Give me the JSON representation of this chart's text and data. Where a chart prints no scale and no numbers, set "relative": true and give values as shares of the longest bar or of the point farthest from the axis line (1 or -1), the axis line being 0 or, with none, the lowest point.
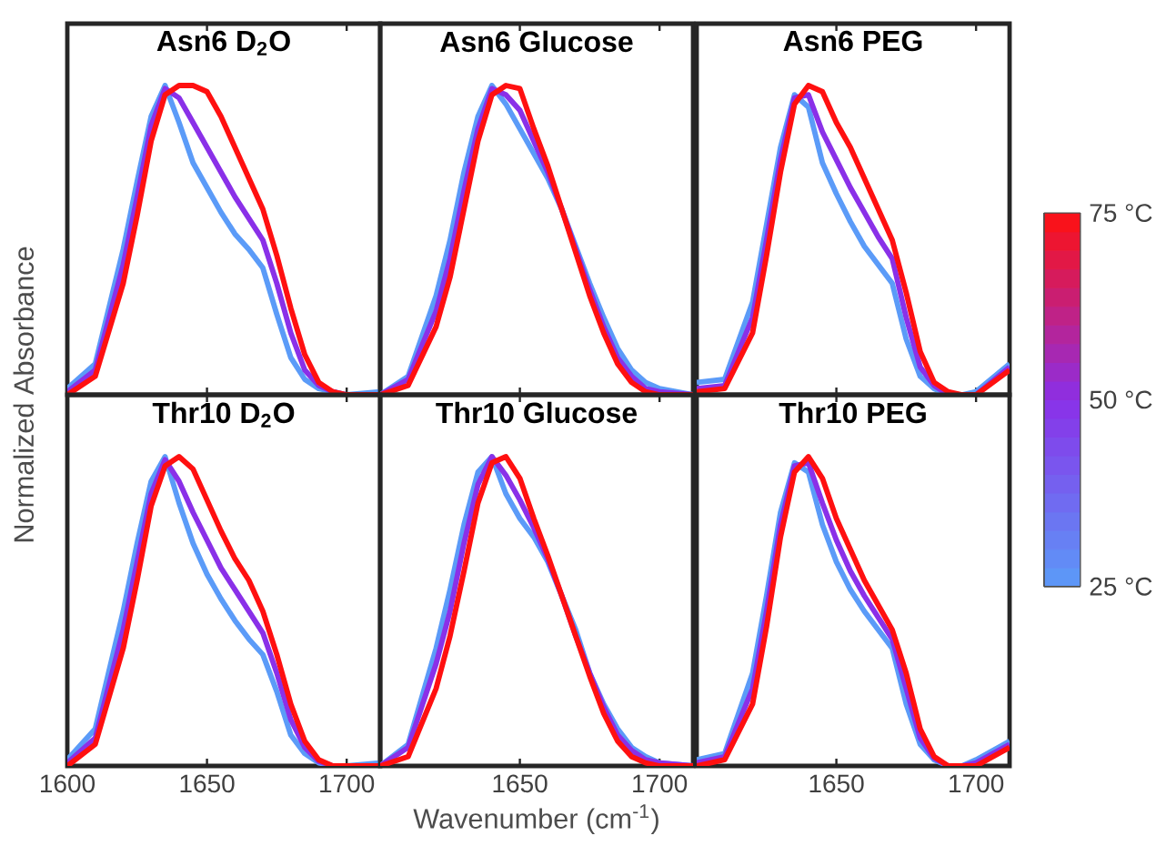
{
  "chart_data": [
    {
      "type": "line",
      "title": "Asn6 D$_{2}$O",
      "relative": true,
      "xlim": [
        1600,
        1712
      ],
      "xticks": [
        1650,
        1700
      ],
      "tick_labels": false,
      "x": [
        1600,
        1610,
        1620,
        1625,
        1630,
        1635,
        1640,
        1645,
        1650,
        1655,
        1660,
        1665,
        1670,
        1675,
        1680,
        1685,
        1690,
        1695,
        1700,
        1712
      ],
      "series": [
        {
          "color": "#5b9bf8",
          "values": [
            0.02,
            0.1,
            0.47,
            0.69,
            0.9,
            1.0,
            0.88,
            0.75,
            0.67,
            0.59,
            0.52,
            0.47,
            0.41,
            0.26,
            0.12,
            0.05,
            0.02,
            0.01,
            0,
            0.01
          ]
        },
        {
          "color": "#8a30e8",
          "values": [
            0.01,
            0.08,
            0.42,
            0.64,
            0.87,
            0.99,
            0.96,
            0.88,
            0.8,
            0.72,
            0.64,
            0.57,
            0.5,
            0.36,
            0.2,
            0.08,
            0.03,
            0.01,
            0,
            0
          ]
        },
        {
          "color": "#ff1010",
          "values": [
            0,
            0.06,
            0.36,
            0.58,
            0.82,
            0.97,
            1.0,
            1.0,
            0.98,
            0.9,
            0.8,
            0.7,
            0.6,
            0.45,
            0.28,
            0.13,
            0.04,
            0.01,
            0,
            0
          ]
        }
      ]
    },
    {
      "type": "line",
      "title": "Asn6 Glucose",
      "relative": true,
      "xlim": [
        1600,
        1712
      ],
      "xticks": [
        1650,
        1700
      ],
      "tick_labels": false,
      "x": [
        1600,
        1610,
        1620,
        1625,
        1630,
        1635,
        1640,
        1645,
        1650,
        1655,
        1660,
        1665,
        1670,
        1675,
        1680,
        1685,
        1690,
        1695,
        1700,
        1712
      ],
      "series": [
        {
          "color": "#5b9bf8",
          "values": [
            0,
            0.06,
            0.32,
            0.5,
            0.72,
            0.9,
            1.0,
            0.94,
            0.86,
            0.78,
            0.7,
            0.6,
            0.48,
            0.36,
            0.25,
            0.15,
            0.08,
            0.04,
            0.02,
            0
          ]
        },
        {
          "color": "#8a30e8",
          "values": [
            0,
            0.05,
            0.27,
            0.44,
            0.66,
            0.86,
            0.99,
            0.97,
            0.92,
            0.82,
            0.72,
            0.6,
            0.47,
            0.34,
            0.22,
            0.12,
            0.06,
            0.02,
            0.01,
            0
          ]
        },
        {
          "color": "#ff1010",
          "values": [
            0,
            0.03,
            0.22,
            0.38,
            0.6,
            0.82,
            0.97,
            1.0,
            0.99,
            0.86,
            0.74,
            0.6,
            0.46,
            0.32,
            0.2,
            0.1,
            0.04,
            0.01,
            0,
            0
          ]
        }
      ]
    },
    {
      "type": "line",
      "title": "Asn6 PEG",
      "relative": true,
      "xlim": [
        1600,
        1712
      ],
      "xticks": [
        1650,
        1700
      ],
      "tick_labels": false,
      "clim": [
        25,
        75
      ],
      "cticks": [
        {
          "value": 25,
          "label": "25 °C"
        },
        {
          "value": 50,
          "label": "50 °C"
        },
        {
          "value": 75,
          "label": "75 °C"
        }
      ],
      "x": [
        1600,
        1610,
        1620,
        1625,
        1630,
        1635,
        1640,
        1645,
        1650,
        1655,
        1660,
        1665,
        1670,
        1675,
        1680,
        1685,
        1690,
        1695,
        1700,
        1712
      ],
      "series": [
        {
          "color": "#5b9bf8",
          "values": [
            0.04,
            0.05,
            0.3,
            0.55,
            0.8,
            0.97,
            0.93,
            0.75,
            0.65,
            0.56,
            0.48,
            0.42,
            0.36,
            0.18,
            0.06,
            0.02,
            0,
            0,
            0.01,
            0.1
          ]
        },
        {
          "color": "#8a30e8",
          "values": [
            0.02,
            0.03,
            0.25,
            0.5,
            0.76,
            0.96,
            0.97,
            0.85,
            0.76,
            0.67,
            0.59,
            0.51,
            0.44,
            0.25,
            0.09,
            0.03,
            0,
            0,
            0,
            0.09
          ]
        },
        {
          "color": "#ff1010",
          "values": [
            0.01,
            0.02,
            0.2,
            0.45,
            0.72,
            0.94,
            1.0,
            0.98,
            0.88,
            0.8,
            0.7,
            0.6,
            0.5,
            0.33,
            0.14,
            0.04,
            0.01,
            0,
            0,
            0.08
          ]
        }
      ]
    },
    {
      "type": "line",
      "title": "Thr10 D$_{2}$O",
      "ylabel": "Normalized Absorbance",
      "relative": true,
      "xlim": [
        1600,
        1712
      ],
      "xticks": [
        1600,
        1650,
        1700
      ],
      "tick_labels": "x",
      "x": [
        1600,
        1610,
        1620,
        1625,
        1630,
        1635,
        1640,
        1645,
        1650,
        1655,
        1660,
        1665,
        1670,
        1675,
        1680,
        1685,
        1690,
        1695,
        1700,
        1712
      ],
      "series": [
        {
          "color": "#5b9bf8",
          "values": [
            0.02,
            0.12,
            0.5,
            0.72,
            0.92,
            1.0,
            0.85,
            0.72,
            0.62,
            0.54,
            0.47,
            0.41,
            0.36,
            0.24,
            0.1,
            0.04,
            0.01,
            0,
            0,
            0.01
          ]
        },
        {
          "color": "#8a30e8",
          "values": [
            0.01,
            0.09,
            0.44,
            0.66,
            0.88,
            0.99,
            0.92,
            0.82,
            0.73,
            0.64,
            0.57,
            0.5,
            0.43,
            0.3,
            0.15,
            0.06,
            0.015,
            0,
            0,
            0
          ]
        },
        {
          "color": "#ff1010",
          "values": [
            0,
            0.07,
            0.38,
            0.6,
            0.84,
            0.97,
            1.0,
            0.96,
            0.86,
            0.76,
            0.67,
            0.6,
            0.5,
            0.36,
            0.2,
            0.08,
            0.02,
            0,
            0,
            0
          ]
        }
      ]
    },
    {
      "type": "line",
      "title": "Thr10 Glucose",
      "xlabel": "Wavenumber (cm$^{-1}$)",
      "relative": true,
      "xlim": [
        1600,
        1712
      ],
      "xticks": [
        1650,
        1700
      ],
      "tick_labels": "x",
      "x": [
        1600,
        1610,
        1620,
        1625,
        1630,
        1635,
        1640,
        1645,
        1650,
        1655,
        1660,
        1665,
        1670,
        1675,
        1680,
        1685,
        1690,
        1695,
        1700,
        1712
      ],
      "series": [
        {
          "color": "#5b9bf8",
          "values": [
            0,
            0.07,
            0.38,
            0.57,
            0.78,
            0.95,
            1.0,
            0.88,
            0.8,
            0.74,
            0.66,
            0.55,
            0.44,
            0.3,
            0.2,
            0.12,
            0.06,
            0.03,
            0.01,
            0
          ]
        },
        {
          "color": "#8a30e8",
          "values": [
            0,
            0.06,
            0.33,
            0.5,
            0.72,
            0.91,
            1.0,
            0.94,
            0.86,
            0.77,
            0.67,
            0.55,
            0.42,
            0.3,
            0.19,
            0.1,
            0.05,
            0.02,
            0.01,
            0
          ]
        },
        {
          "color": "#ff1010",
          "values": [
            0,
            0.03,
            0.25,
            0.42,
            0.63,
            0.85,
            0.98,
            1.0,
            0.93,
            0.8,
            0.68,
            0.55,
            0.42,
            0.29,
            0.17,
            0.08,
            0.03,
            0.01,
            0,
            0
          ]
        }
      ]
    },
    {
      "type": "line",
      "title": "Thr10 PEG",
      "relative": true,
      "xlim": [
        1600,
        1712
      ],
      "xticks": [
        1650,
        1700
      ],
      "tick_labels": "x",
      "x": [
        1600,
        1610,
        1620,
        1625,
        1630,
        1635,
        1640,
        1645,
        1650,
        1655,
        1660,
        1665,
        1670,
        1675,
        1680,
        1685,
        1690,
        1695,
        1700,
        1712
      ],
      "series": [
        {
          "color": "#5b9bf8",
          "values": [
            0.02,
            0.04,
            0.3,
            0.55,
            0.82,
            0.98,
            0.95,
            0.78,
            0.66,
            0.57,
            0.5,
            0.44,
            0.38,
            0.2,
            0.07,
            0.02,
            0,
            0,
            0.02,
            0.08
          ]
        },
        {
          "color": "#8a30e8",
          "values": [
            0.01,
            0.03,
            0.25,
            0.5,
            0.78,
            0.97,
            0.98,
            0.85,
            0.73,
            0.63,
            0.55,
            0.48,
            0.41,
            0.25,
            0.09,
            0.025,
            0,
            0,
            0.01,
            0.07
          ]
        },
        {
          "color": "#ff1010",
          "values": [
            0,
            0.02,
            0.2,
            0.45,
            0.74,
            0.95,
            1.0,
            0.93,
            0.8,
            0.7,
            0.6,
            0.52,
            0.44,
            0.3,
            0.12,
            0.03,
            0,
            0,
            0,
            0.06
          ]
        }
      ]
    }
  ]
}
